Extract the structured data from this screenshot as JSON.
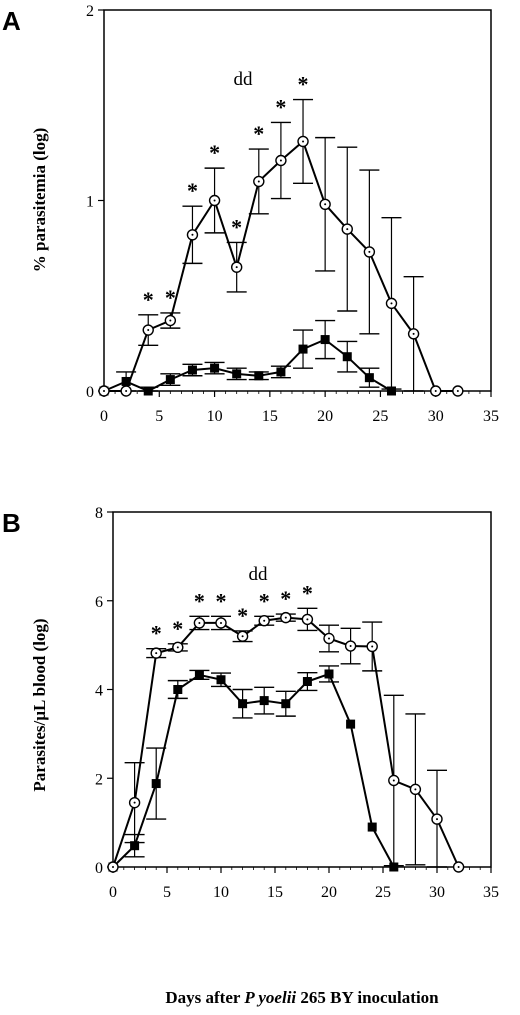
{
  "figure": {
    "xlabel_parts": {
      "before_italic": "Days after ",
      "italic": "P  yoelii",
      "after_italic": " 265 BY inoculation"
    }
  },
  "chart_data": [
    {
      "panel_letter": "A",
      "type": "line",
      "ylabel": "% parasitemia (log)",
      "x_ticks": [
        "0",
        "5",
        "10",
        "15",
        "20",
        "25",
        "30",
        "35"
      ],
      "y_ticks": [
        "0",
        "1",
        "2"
      ],
      "xlim": [
        0,
        35
      ],
      "ylim": [
        0,
        2
      ],
      "annotation": "dd",
      "series": [
        {
          "marker": "open-circle",
          "points": [
            {
              "x": 0,
              "y": 0,
              "err": 0
            },
            {
              "x": 2,
              "y": 0,
              "err": 0
            },
            {
              "x": 4,
              "y": 0.32,
              "err": 0.08
            },
            {
              "x": 6,
              "y": 0.37,
              "err": 0.04
            },
            {
              "x": 8,
              "y": 0.82,
              "err": 0.15
            },
            {
              "x": 10,
              "y": 1.0,
              "err": 0.17
            },
            {
              "x": 12,
              "y": 0.65,
              "err": 0.13
            },
            {
              "x": 14,
              "y": 1.1,
              "err": 0.17
            },
            {
              "x": 16,
              "y": 1.21,
              "err": 0.2
            },
            {
              "x": 18,
              "y": 1.31,
              "err": 0.22
            },
            {
              "x": 20,
              "y": 0.98,
              "err": 0.35
            },
            {
              "x": 22,
              "y": 0.85,
              "err": 0.43
            },
            {
              "x": 24,
              "y": 0.73,
              "err": 0.43
            },
            {
              "x": 26,
              "y": 0.46,
              "err": 0.45
            },
            {
              "x": 28,
              "y": 0.3,
              "err": 0.3
            },
            {
              "x": 30,
              "y": 0,
              "err": 0
            },
            {
              "x": 32,
              "y": 0,
              "err": 0
            }
          ]
        },
        {
          "marker": "filled-square",
          "points": [
            {
              "x": 0,
              "y": 0,
              "err": 0
            },
            {
              "x": 2,
              "y": 0.05,
              "err": 0.05
            },
            {
              "x": 4,
              "y": 0,
              "err": 0.02
            },
            {
              "x": 6,
              "y": 0.06,
              "err": 0.03
            },
            {
              "x": 8,
              "y": 0.11,
              "err": 0.03
            },
            {
              "x": 10,
              "y": 0.12,
              "err": 0.03
            },
            {
              "x": 12,
              "y": 0.09,
              "err": 0.03
            },
            {
              "x": 14,
              "y": 0.08,
              "err": 0.02
            },
            {
              "x": 16,
              "y": 0.1,
              "err": 0.03
            },
            {
              "x": 18,
              "y": 0.22,
              "err": 0.1
            },
            {
              "x": 20,
              "y": 0.27,
              "err": 0.1
            },
            {
              "x": 22,
              "y": 0.18,
              "err": 0.08
            },
            {
              "x": 24,
              "y": 0.07,
              "err": 0.05
            },
            {
              "x": 26,
              "y": 0,
              "err": 0
            }
          ]
        }
      ],
      "significance_x": [
        4,
        6,
        8,
        10,
        12,
        14,
        16,
        18
      ]
    },
    {
      "panel_letter": "B",
      "type": "line",
      "ylabel": "Parasites/µL      blood (log)",
      "x_ticks": [
        "0",
        "5",
        "10",
        "15",
        "20",
        "25",
        "30",
        "35"
      ],
      "y_ticks": [
        "0",
        "2",
        "4",
        "6",
        "8"
      ],
      "xlim": [
        0,
        35
      ],
      "ylim": [
        0,
        8
      ],
      "annotation": "dd",
      "series": [
        {
          "marker": "open-circle",
          "points": [
            {
              "x": 0,
              "y": 0,
              "err": 0
            },
            {
              "x": 2,
              "y": 1.45,
              "err": 0.9
            },
            {
              "x": 4,
              "y": 4.82,
              "err": 0.1
            },
            {
              "x": 6,
              "y": 4.95,
              "err": 0.08
            },
            {
              "x": 8,
              "y": 5.5,
              "err": 0.15
            },
            {
              "x": 10,
              "y": 5.5,
              "err": 0.15
            },
            {
              "x": 12,
              "y": 5.2,
              "err": 0.12
            },
            {
              "x": 14,
              "y": 5.55,
              "err": 0.1
            },
            {
              "x": 16,
              "y": 5.62,
              "err": 0.08
            },
            {
              "x": 18,
              "y": 5.58,
              "err": 0.25
            },
            {
              "x": 20,
              "y": 5.15,
              "err": 0.3
            },
            {
              "x": 22,
              "y": 4.98,
              "err": 0.4
            },
            {
              "x": 24,
              "y": 4.97,
              "err": 0.55
            },
            {
              "x": 26,
              "y": 1.95,
              "err": 1.92
            },
            {
              "x": 28,
              "y": 1.75,
              "err": 1.7
            },
            {
              "x": 30,
              "y": 1.08,
              "err": 1.1
            },
            {
              "x": 32,
              "y": 0,
              "err": 0
            }
          ]
        },
        {
          "marker": "filled-square",
          "points": [
            {
              "x": 0,
              "y": 0,
              "err": 0
            },
            {
              "x": 2,
              "y": 0.48,
              "err": 0.25
            },
            {
              "x": 4,
              "y": 1.88,
              "err": 0.8
            },
            {
              "x": 6,
              "y": 4.0,
              "err": 0.2
            },
            {
              "x": 8,
              "y": 4.33,
              "err": 0.1
            },
            {
              "x": 10,
              "y": 4.22,
              "err": 0.15
            },
            {
              "x": 12,
              "y": 3.68,
              "err": 0.32
            },
            {
              "x": 14,
              "y": 3.75,
              "err": 0.3
            },
            {
              "x": 16,
              "y": 3.68,
              "err": 0.28
            },
            {
              "x": 18,
              "y": 4.18,
              "err": 0.2
            },
            {
              "x": 20,
              "y": 4.35,
              "err": 0.18
            },
            {
              "x": 22,
              "y": 3.22,
              "err": 0
            },
            {
              "x": 24,
              "y": 0.9,
              "err": 0
            },
            {
              "x": 26,
              "y": 0,
              "err": 0
            }
          ]
        }
      ],
      "significance_x": [
        4,
        6,
        8,
        10,
        12,
        14,
        16,
        18
      ]
    }
  ]
}
